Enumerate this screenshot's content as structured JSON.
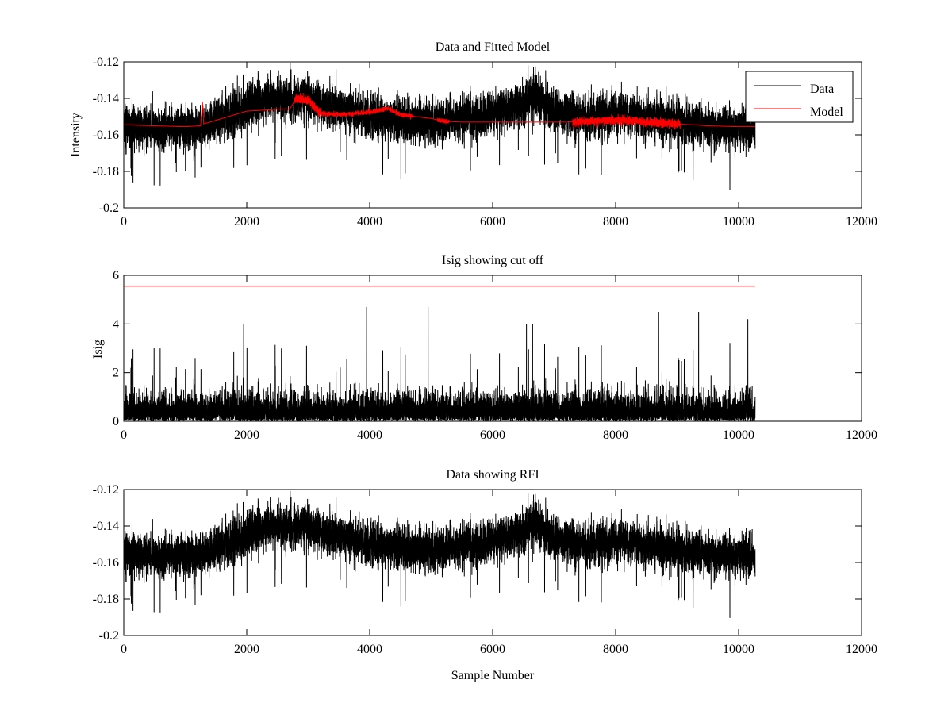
{
  "chart_data": [
    {
      "type": "line",
      "title": "Data and Fitted Model",
      "xlabel": "",
      "ylabel": "Intensity",
      "xlim": [
        0,
        12000
      ],
      "ylim": [
        -0.2,
        -0.12
      ],
      "xticks": [
        0,
        2000,
        4000,
        6000,
        8000,
        10000,
        12000
      ],
      "yticks": [
        -0.2,
        -0.18,
        -0.16,
        -0.14,
        -0.12
      ],
      "xtick_labels": [
        "0",
        "2000",
        "4000",
        "6000",
        "8000",
        "10000",
        "12000"
      ],
      "ytick_labels": [
        "-0.2",
        "-0.18",
        "-0.16",
        "-0.14",
        "-0.12"
      ],
      "grid": false,
      "legend": {
        "placement": "top-right",
        "entries": [
          "Data",
          "Model"
        ]
      },
      "series": [
        {
          "name": "Data",
          "color": "#000000",
          "x_range": [
            0,
            10270
          ],
          "baseline": {
            "x": [
              0,
              500,
              1000,
              1300,
              1600,
              2000,
              2200,
              2500,
              3000,
              3500,
              4000,
              4500,
              5000,
              5500,
              6000,
              6500,
              6650,
              7000,
              7500,
              8000,
              8500,
              9000,
              9500,
              10000,
              10270
            ],
            "y": [
              -0.155,
              -0.156,
              -0.157,
              -0.155,
              -0.151,
              -0.145,
              -0.142,
              -0.14,
              -0.141,
              -0.146,
              -0.15,
              -0.152,
              -0.153,
              -0.151,
              -0.148,
              -0.144,
              -0.137,
              -0.147,
              -0.15,
              -0.148,
              -0.15,
              -0.153,
              -0.155,
              -0.157,
              -0.157
            ]
          },
          "approx_noise_std": 0.0058
        },
        {
          "name": "Model",
          "color": "#ff0000",
          "x": [
            0,
            500,
            1000,
            1250,
            1280,
            1300,
            1500,
            1800,
            2000,
            2500,
            2700,
            2800,
            3000,
            3200,
            3500,
            4000,
            4300,
            4500,
            5000,
            5200,
            5500,
            6000,
            6500,
            7000,
            7200,
            7500,
            8000,
            8500,
            9000,
            9500,
            10000,
            10270
          ],
          "y": [
            -0.1545,
            -0.155,
            -0.1555,
            -0.155,
            -0.142,
            -0.154,
            -0.152,
            -0.149,
            -0.147,
            -0.146,
            -0.146,
            -0.14,
            -0.141,
            -0.148,
            -0.149,
            -0.1475,
            -0.1455,
            -0.149,
            -0.151,
            -0.1525,
            -0.153,
            -0.153,
            -0.153,
            -0.153,
            -0.153,
            -0.1525,
            -0.152,
            -0.153,
            -0.154,
            -0.155,
            -0.1555,
            -0.1555
          ]
        }
      ]
    },
    {
      "type": "line",
      "title": "Isig showing cut off",
      "xlabel": "",
      "ylabel": "Isig",
      "xlim": [
        0,
        12000
      ],
      "ylim": [
        0,
        6
      ],
      "xticks": [
        0,
        2000,
        4000,
        6000,
        8000,
        10000,
        12000
      ],
      "yticks": [
        0,
        2,
        4,
        6
      ],
      "xtick_labels": [
        "0",
        "2000",
        "4000",
        "6000",
        "8000",
        "10000",
        "12000"
      ],
      "ytick_labels": [
        "0",
        "2",
        "4",
        "6"
      ],
      "grid": false,
      "series": [
        {
          "color": "#000000",
          "x_range": [
            0,
            10270
          ],
          "typical_max": 2.0,
          "peak_max": 4.8
        },
        {
          "color": "#ff0000",
          "x": [
            0,
            10270
          ],
          "y": [
            5.55,
            5.55
          ]
        }
      ]
    },
    {
      "type": "line",
      "title": "Data showing RFI",
      "xlabel": "Sample Number",
      "ylabel": "",
      "xlim": [
        0,
        12000
      ],
      "ylim": [
        -0.2,
        -0.12
      ],
      "xticks": [
        0,
        2000,
        4000,
        6000,
        8000,
        10000,
        12000
      ],
      "yticks": [
        -0.2,
        -0.18,
        -0.16,
        -0.14,
        -0.12
      ],
      "xtick_labels": [
        "0",
        "2000",
        "4000",
        "6000",
        "8000",
        "10000",
        "12000"
      ],
      "ytick_labels": [
        "-0.2",
        "-0.18",
        "-0.16",
        "-0.14",
        "-0.12"
      ],
      "grid": false,
      "series": [
        {
          "color": "#000000",
          "x_range": [
            0,
            10270
          ],
          "same_as": "Data (plot 1)"
        }
      ]
    }
  ]
}
